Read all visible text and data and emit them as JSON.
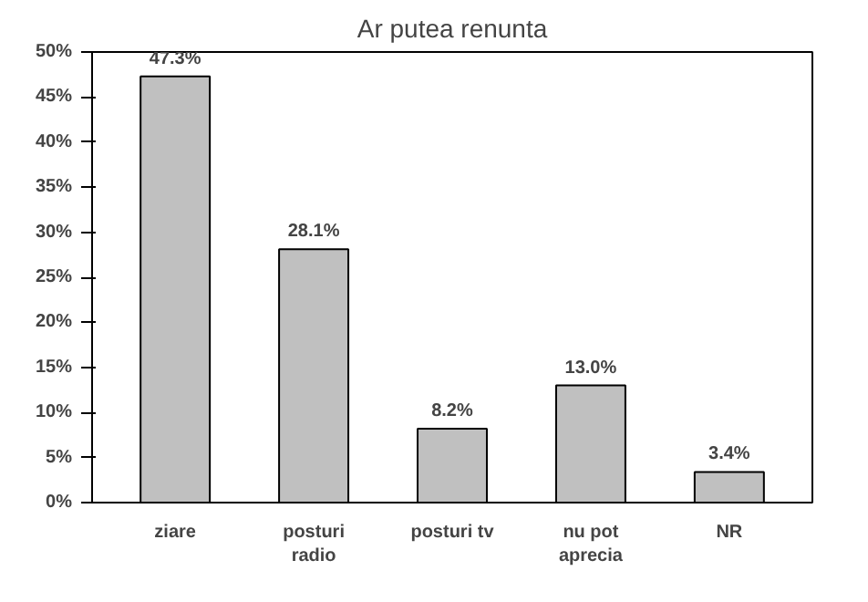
{
  "chart_data": {
    "type": "bar",
    "title": "Ar putea renunta",
    "categories": [
      "ziare",
      "posturi\nradio",
      "posturi tv",
      "nu pot\naprecia",
      "NR"
    ],
    "values": [
      47.3,
      28.1,
      8.2,
      13.0,
      3.4
    ],
    "value_labels": [
      "47.3%",
      "28.1%",
      "8.2%",
      "13.0%",
      "3.4%"
    ],
    "color": "#c0c0c0",
    "ylim": [
      0,
      50
    ],
    "yticks": [
      {
        "value": 0,
        "label": "0%"
      },
      {
        "value": 5,
        "label": "5%"
      },
      {
        "value": 10,
        "label": "10%"
      },
      {
        "value": 15,
        "label": "15%"
      },
      {
        "value": 20,
        "label": "20%"
      },
      {
        "value": 25,
        "label": "25%"
      },
      {
        "value": 30,
        "label": "30%"
      },
      {
        "value": 35,
        "label": "35%"
      },
      {
        "value": 40,
        "label": "40%"
      },
      {
        "value": 45,
        "label": "45%"
      },
      {
        "value": 50,
        "label": "50%"
      }
    ],
    "grid": false
  }
}
